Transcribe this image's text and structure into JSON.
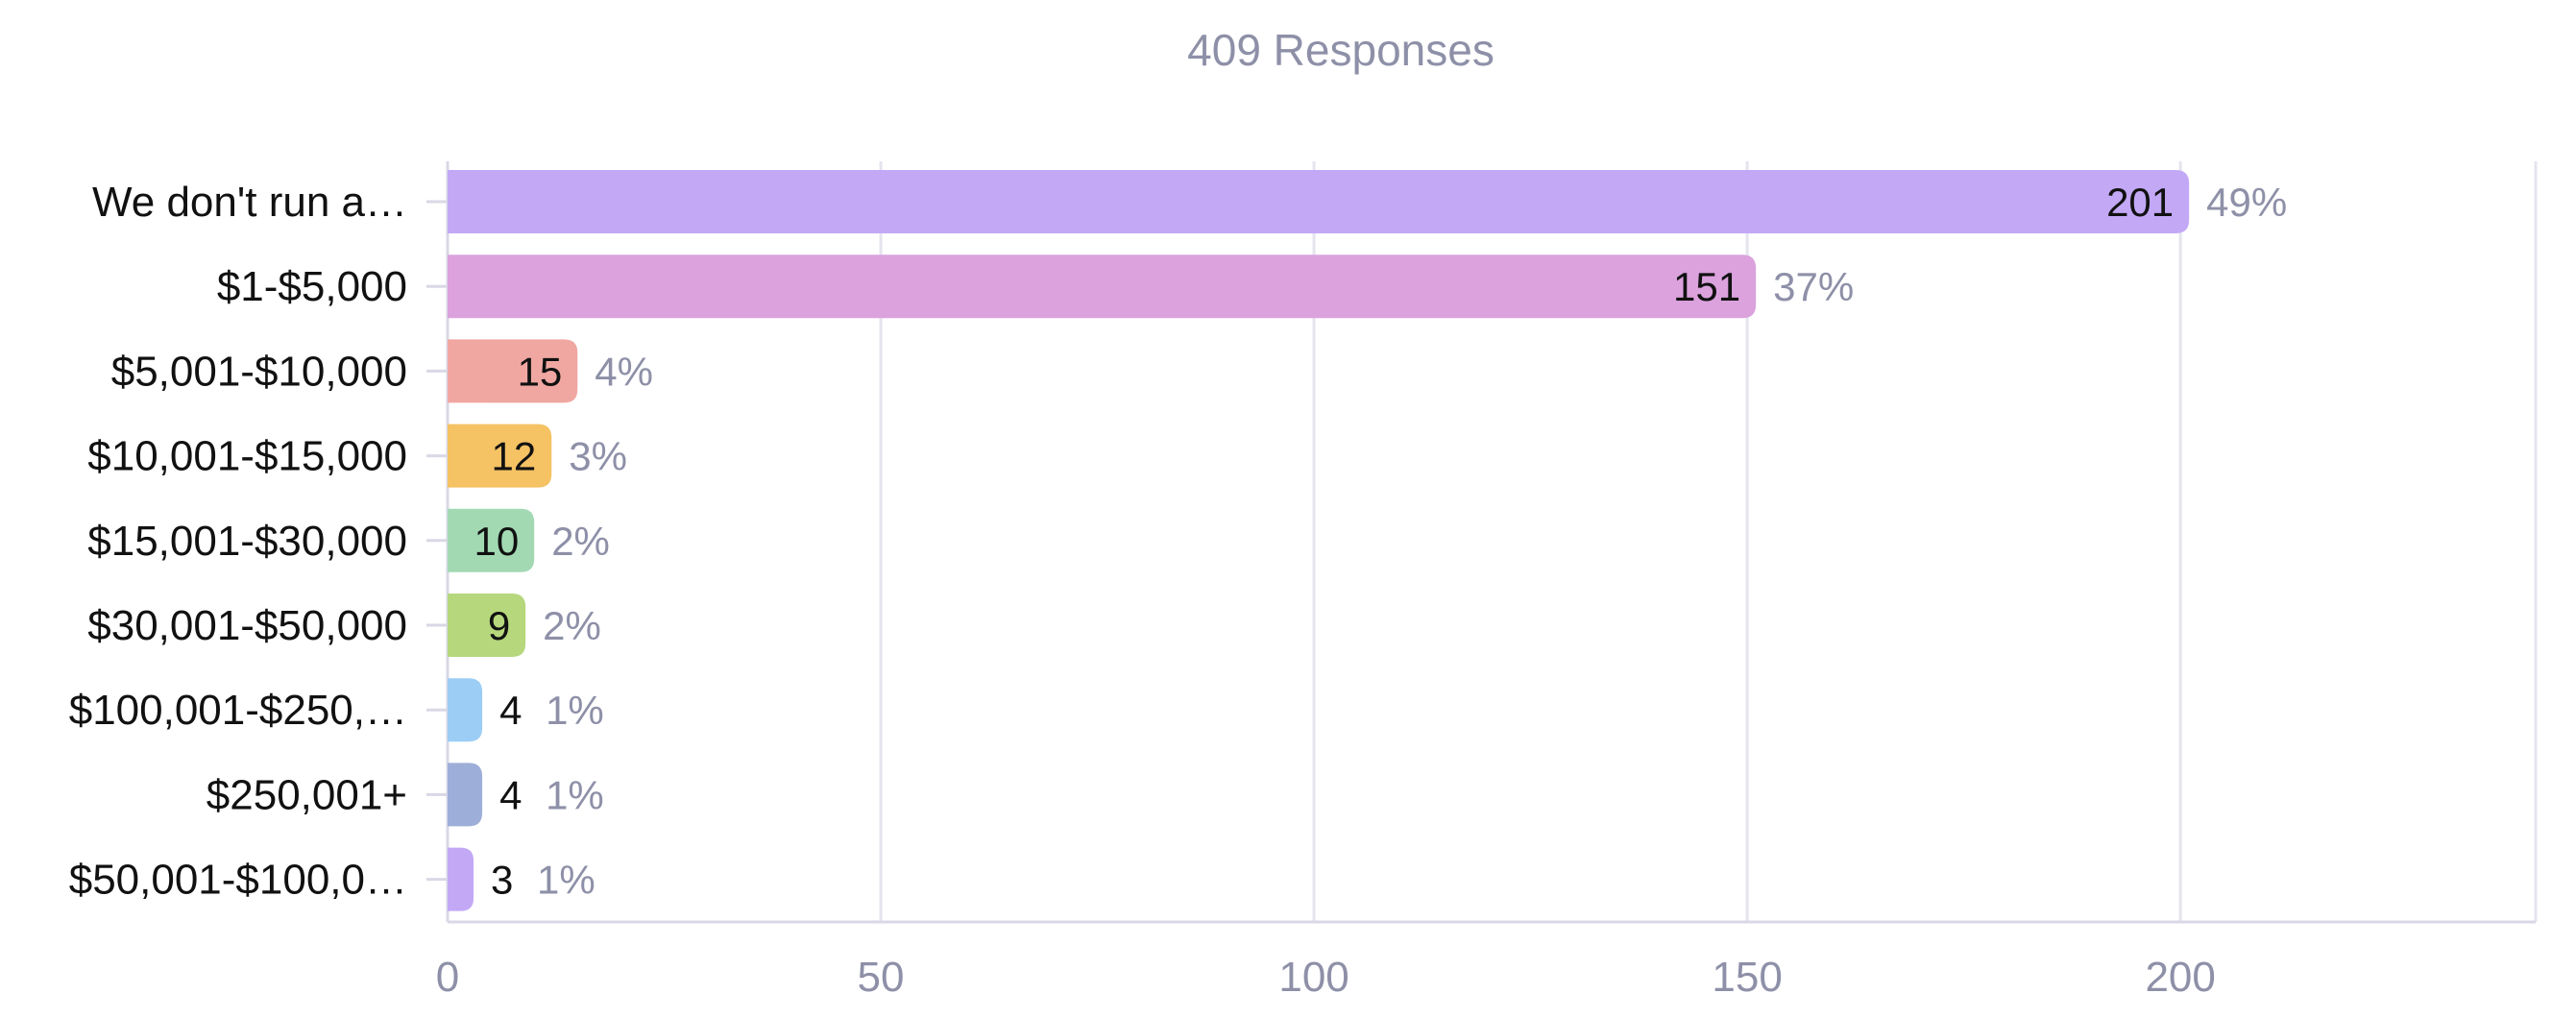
{
  "chart_data": {
    "type": "bar",
    "orientation": "horizontal",
    "title": "409 Responses",
    "categories": [
      "We don't run a…",
      "$1-$5,000",
      "$5,001-$10,000",
      "$10,001-$15,000",
      "$15,001-$30,000",
      "$30,001-$50,000",
      "$100,001-$250,…",
      "$250,001+",
      "$50,001-$100,0…"
    ],
    "values": [
      201,
      151,
      15,
      12,
      10,
      9,
      4,
      4,
      3
    ],
    "value_labels": [
      "201",
      "151",
      "15",
      "12",
      "10",
      "9",
      "4",
      "4",
      "3"
    ],
    "percent_labels": [
      "49%",
      "37%",
      "4%",
      "3%",
      "2%",
      "2%",
      "1%",
      "1%",
      "1%"
    ],
    "colors": [
      "#c3a8f6",
      "#dba2dd",
      "#f0a7a2",
      "#f5c264",
      "#a2d9b3",
      "#b6d77c",
      "#9ccdf5",
      "#9daed8",
      "#c3a8f6"
    ],
    "xticks": [
      "0",
      "50",
      "100",
      "150",
      "200"
    ],
    "xlim": [
      0,
      241
    ],
    "grid": true,
    "legend": "none"
  }
}
